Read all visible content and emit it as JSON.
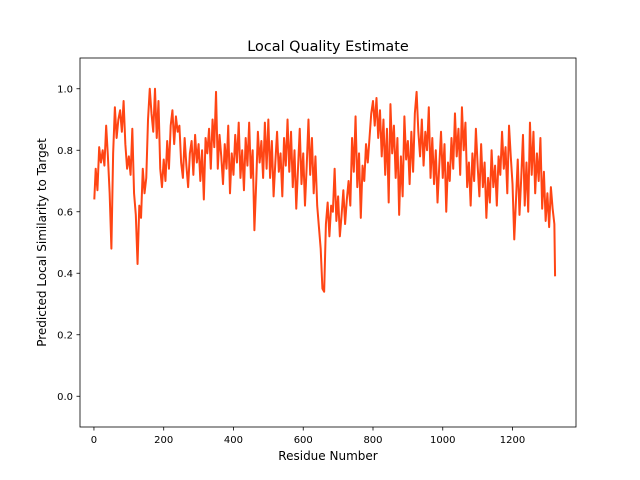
{
  "chart_data": {
    "type": "line",
    "title": "Local Quality Estimate",
    "xlabel": "Residue Number",
    "ylabel": "Predicted Local Similarity to Target",
    "xlim": [
      -40,
      1382
    ],
    "ylim": [
      -0.1,
      1.1
    ],
    "xticks": [
      0,
      200,
      400,
      600,
      800,
      1000,
      1200
    ],
    "yticks": [
      0.0,
      0.2,
      0.4,
      0.6,
      0.8,
      1.0
    ],
    "xtick_labels": [
      "0",
      "200",
      "400",
      "600",
      "800",
      "1000",
      "1200"
    ],
    "ytick_labels": [
      "0.0",
      "0.2",
      "0.4",
      "0.6",
      "0.8",
      "1.0"
    ],
    "grid": false,
    "line_color": "#ff4514",
    "series": [
      {
        "x": [
          1,
          5,
          10,
          15,
          20,
          25,
          30,
          35,
          40,
          45,
          50,
          55,
          60,
          65,
          70,
          75,
          80,
          85,
          90,
          95,
          100,
          105,
          110,
          115,
          120,
          125,
          130,
          135,
          140,
          145,
          150,
          155,
          160,
          165,
          170,
          175,
          180,
          185,
          190,
          195,
          200,
          205,
          210,
          215,
          220,
          225,
          230,
          235,
          240,
          245,
          250,
          255,
          260,
          265,
          270,
          275,
          280,
          285,
          290,
          295,
          300,
          305,
          310,
          315,
          320,
          325,
          330,
          335,
          340,
          345,
          350,
          355,
          360,
          365,
          370,
          375,
          380,
          385,
          390,
          395,
          400,
          405,
          410,
          415,
          420,
          425,
          430,
          435,
          440,
          445,
          450,
          455,
          460,
          465,
          470,
          475,
          480,
          485,
          490,
          495,
          500,
          505,
          510,
          515,
          520,
          525,
          530,
          535,
          540,
          545,
          550,
          555,
          560,
          565,
          570,
          575,
          580,
          585,
          590,
          595,
          600,
          605,
          610,
          615,
          620,
          625,
          630,
          635,
          640,
          645,
          650,
          655,
          660,
          665,
          670,
          675,
          680,
          685,
          690,
          695,
          700,
          705,
          710,
          715,
          720,
          725,
          730,
          735,
          740,
          745,
          750,
          755,
          760,
          765,
          770,
          775,
          780,
          785,
          790,
          795,
          800,
          805,
          810,
          815,
          820,
          825,
          830,
          835,
          840,
          845,
          850,
          855,
          860,
          865,
          870,
          875,
          880,
          885,
          890,
          895,
          900,
          905,
          910,
          915,
          920,
          925,
          930,
          935,
          940,
          945,
          950,
          955,
          960,
          965,
          970,
          975,
          980,
          985,
          990,
          995,
          1000,
          1005,
          1010,
          1015,
          1020,
          1025,
          1030,
          1035,
          1040,
          1045,
          1050,
          1055,
          1060,
          1065,
          1070,
          1075,
          1080,
          1085,
          1090,
          1095,
          1100,
          1105,
          1110,
          1115,
          1120,
          1125,
          1130,
          1135,
          1140,
          1145,
          1150,
          1155,
          1160,
          1165,
          1170,
          1175,
          1180,
          1185,
          1190,
          1195,
          1200,
          1205,
          1210,
          1215,
          1220,
          1225,
          1230,
          1235,
          1240,
          1245,
          1250,
          1255,
          1260,
          1265,
          1270,
          1275,
          1280,
          1285,
          1290,
          1295,
          1300,
          1305,
          1310,
          1315,
          1320,
          1322
        ],
        "y": [
          0.64,
          0.74,
          0.67,
          0.81,
          0.76,
          0.8,
          0.75,
          0.88,
          0.78,
          0.66,
          0.48,
          0.79,
          0.94,
          0.84,
          0.9,
          0.93,
          0.86,
          0.96,
          0.82,
          0.74,
          0.78,
          0.72,
          0.87,
          0.66,
          0.59,
          0.43,
          0.62,
          0.58,
          0.74,
          0.66,
          0.71,
          0.9,
          1.0,
          0.92,
          0.86,
          1.0,
          0.84,
          0.96,
          0.74,
          0.68,
          0.77,
          0.7,
          0.83,
          0.74,
          0.88,
          0.93,
          0.82,
          0.91,
          0.86,
          0.88,
          0.76,
          0.71,
          0.84,
          0.75,
          0.68,
          0.79,
          0.83,
          0.72,
          0.85,
          0.76,
          0.82,
          0.7,
          0.8,
          0.64,
          0.84,
          0.79,
          0.87,
          0.74,
          0.9,
          0.81,
          0.99,
          0.74,
          0.85,
          0.78,
          0.69,
          0.82,
          0.74,
          0.88,
          0.66,
          0.79,
          0.72,
          0.85,
          0.76,
          0.89,
          0.71,
          0.8,
          0.67,
          0.84,
          0.75,
          0.89,
          0.71,
          0.8,
          0.54,
          0.69,
          0.86,
          0.76,
          0.83,
          0.71,
          0.89,
          0.74,
          0.9,
          0.71,
          0.83,
          0.65,
          0.76,
          0.86,
          0.73,
          0.79,
          0.65,
          0.84,
          0.75,
          0.9,
          0.73,
          0.86,
          0.68,
          0.8,
          0.61,
          0.74,
          0.87,
          0.69,
          0.79,
          0.62,
          0.75,
          0.9,
          0.72,
          0.84,
          0.66,
          0.78,
          0.62,
          0.55,
          0.48,
          0.35,
          0.34,
          0.56,
          0.63,
          0.52,
          0.62,
          0.6,
          0.74,
          0.57,
          0.65,
          0.52,
          0.59,
          0.67,
          0.56,
          0.64,
          0.7,
          0.62,
          0.84,
          0.73,
          0.91,
          0.68,
          0.79,
          0.58,
          0.75,
          0.7,
          0.82,
          0.76,
          0.84,
          0.92,
          0.96,
          0.88,
          0.97,
          0.84,
          0.93,
          0.78,
          0.9,
          0.72,
          0.87,
          0.63,
          0.95,
          0.79,
          0.88,
          0.71,
          0.84,
          0.59,
          0.78,
          0.65,
          0.91,
          0.77,
          0.83,
          0.69,
          0.86,
          0.73,
          0.92,
          0.99,
          0.86,
          0.78,
          0.9,
          0.75,
          0.86,
          0.8,
          0.94,
          0.71,
          0.84,
          0.69,
          0.8,
          0.63,
          0.75,
          0.86,
          0.71,
          0.82,
          0.6,
          0.76,
          0.7,
          0.84,
          0.74,
          0.92,
          0.78,
          0.87,
          0.72,
          0.94,
          0.8,
          0.89,
          0.68,
          0.76,
          0.62,
          0.79,
          0.7,
          0.87,
          0.75,
          0.65,
          0.82,
          0.68,
          0.76,
          0.58,
          0.71,
          0.63,
          0.8,
          0.68,
          0.75,
          0.62,
          0.78,
          0.72,
          0.86,
          0.74,
          0.81,
          0.66,
          0.88,
          0.78,
          0.69,
          0.51,
          0.64,
          0.77,
          0.59,
          0.71,
          0.85,
          0.62,
          0.76,
          0.6,
          0.89,
          0.72,
          0.86,
          0.66,
          0.79,
          0.7,
          0.84,
          0.61,
          0.73,
          0.57,
          0.66,
          0.55,
          0.68,
          0.61,
          0.56,
          0.39
        ]
      }
    ]
  }
}
